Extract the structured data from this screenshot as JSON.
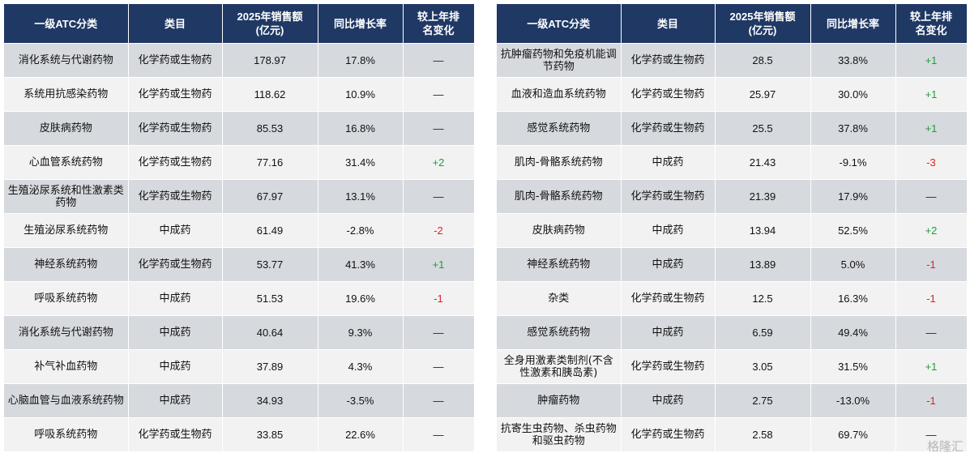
{
  "headers": {
    "atc": "一级ATC分类",
    "category": "类目",
    "sales": "2025年销售额",
    "sales_unit": "(亿元)",
    "growth": "同比增长率",
    "rank_line1": "较上年排",
    "rank_line2": "名变化"
  },
  "left_rows": [
    {
      "atc": "消化系统与代谢药物",
      "category": "化学药或生物药",
      "sales": "178.97",
      "growth": "17.8%",
      "rank": "—",
      "dir": "same"
    },
    {
      "atc": "系统用抗感染药物",
      "category": "化学药或生物药",
      "sales": "118.62",
      "growth": "10.9%",
      "rank": "—",
      "dir": "same"
    },
    {
      "atc": "皮肤病药物",
      "category": "化学药或生物药",
      "sales": "85.53",
      "growth": "16.8%",
      "rank": "—",
      "dir": "same"
    },
    {
      "atc": "心血管系统药物",
      "category": "化学药或生物药",
      "sales": "77.16",
      "growth": "31.4%",
      "rank": "+2",
      "dir": "pos"
    },
    {
      "atc": "生殖泌尿系统和性激素类药物",
      "category": "化学药或生物药",
      "sales": "67.97",
      "growth": "13.1%",
      "rank": "—",
      "dir": "same"
    },
    {
      "atc": "生殖泌尿系统药物",
      "category": "中成药",
      "sales": "61.49",
      "growth": "-2.8%",
      "rank": "-2",
      "dir": "neg"
    },
    {
      "atc": "神经系统药物",
      "category": "化学药或生物药",
      "sales": "53.77",
      "growth": "41.3%",
      "rank": "+1",
      "dir": "pos"
    },
    {
      "atc": "呼吸系统药物",
      "category": "中成药",
      "sales": "51.53",
      "growth": "19.6%",
      "rank": "-1",
      "dir": "neg"
    },
    {
      "atc": "消化系统与代谢药物",
      "category": "中成药",
      "sales": "40.64",
      "growth": "9.3%",
      "rank": "—",
      "dir": "same"
    },
    {
      "atc": "补气补血药物",
      "category": "中成药",
      "sales": "37.89",
      "growth": "4.3%",
      "rank": "—",
      "dir": "same"
    },
    {
      "atc": "心脑血管与血液系统药物",
      "category": "中成药",
      "sales": "34.93",
      "growth": "-3.5%",
      "rank": "—",
      "dir": "same"
    },
    {
      "atc": "呼吸系统药物",
      "category": "化学药或生物药",
      "sales": "33.85",
      "growth": "22.6%",
      "rank": "—",
      "dir": "same"
    }
  ],
  "right_rows": [
    {
      "atc": "抗肿瘤药物和免疫机能调节药物",
      "category": "化学药或生物药",
      "sales": "28.5",
      "growth": "33.8%",
      "rank": "+1",
      "dir": "pos"
    },
    {
      "atc": "血液和造血系统药物",
      "category": "化学药或生物药",
      "sales": "25.97",
      "growth": "30.0%",
      "rank": "+1",
      "dir": "pos"
    },
    {
      "atc": "感觉系统药物",
      "category": "化学药或生物药",
      "sales": "25.5",
      "growth": "37.8%",
      "rank": "+1",
      "dir": "pos"
    },
    {
      "atc": "肌肉-骨骼系统药物",
      "category": "中成药",
      "sales": "21.43",
      "growth": "-9.1%",
      "rank": "-3",
      "dir": "neg"
    },
    {
      "atc": "肌肉-骨骼系统药物",
      "category": "化学药或生物药",
      "sales": "21.39",
      "growth": "17.9%",
      "rank": "—",
      "dir": "same"
    },
    {
      "atc": "皮肤病药物",
      "category": "中成药",
      "sales": "13.94",
      "growth": "52.5%",
      "rank": "+2",
      "dir": "pos"
    },
    {
      "atc": "神经系统药物",
      "category": "中成药",
      "sales": "13.89",
      "growth": "5.0%",
      "rank": "-1",
      "dir": "neg"
    },
    {
      "atc": "杂类",
      "category": "化学药或生物药",
      "sales": "12.5",
      "growth": "16.3%",
      "rank": "-1",
      "dir": "neg"
    },
    {
      "atc": "感觉系统药物",
      "category": "中成药",
      "sales": "6.59",
      "growth": "49.4%",
      "rank": "—",
      "dir": "same"
    },
    {
      "atc": "全身用激素类制剂(不含性激素和胰岛素)",
      "category": "化学药或生物药",
      "sales": "3.05",
      "growth": "31.5%",
      "rank": "+1",
      "dir": "pos"
    },
    {
      "atc": "肿瘤药物",
      "category": "中成药",
      "sales": "2.75",
      "growth": "-13.0%",
      "rank": "-1",
      "dir": "neg"
    },
    {
      "atc": "抗寄生虫药物、杀虫药物和驱虫药物",
      "category": "化学药或生物药",
      "sales": "2.58",
      "growth": "69.7%",
      "rank": "—",
      "dir": "same"
    }
  ],
  "colors": {
    "header_bg": "#1f3864",
    "row_odd": "#d6d9de",
    "row_even": "#f2f2f2",
    "increase": "#1e9e3a",
    "decrease": "#e02020"
  },
  "watermark": "格隆汇"
}
